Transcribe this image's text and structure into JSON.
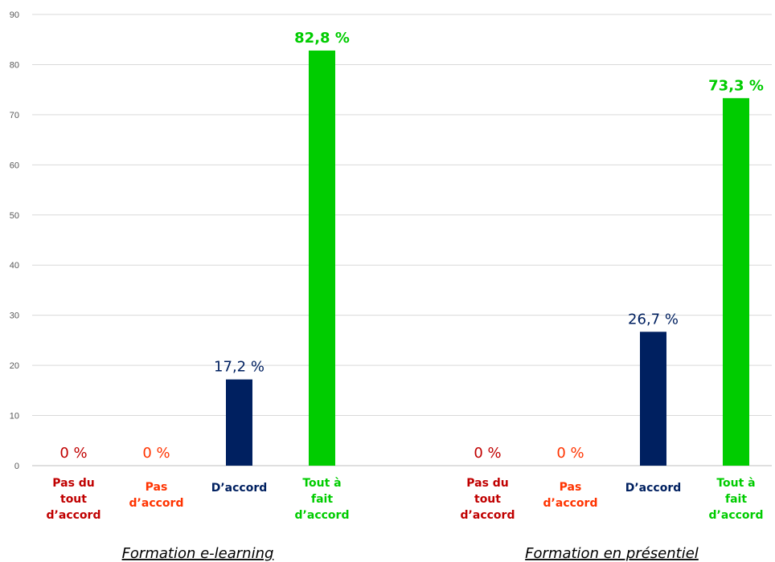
{
  "chart_data": {
    "type": "bar",
    "ylim": [
      0,
      90
    ],
    "yticks": [
      0,
      10,
      20,
      30,
      40,
      50,
      60,
      70,
      80,
      90
    ],
    "grid": true,
    "legend": "none",
    "groups": [
      {
        "label": "Formation e-learning",
        "bars": [
          {
            "category": [
              "Pas du",
              "tout",
              "d’accord"
            ],
            "value": 0,
            "label": "0 %",
            "color": "#C00000",
            "label_color": "#C00000",
            "bold": false
          },
          {
            "category": [
              "Pas",
              "d’accord"
            ],
            "value": 0,
            "label": "0 %",
            "color": "#FF3300",
            "label_color": "#FF3300",
            "bold": false
          },
          {
            "category": [
              "D’accord"
            ],
            "value": 17.2,
            "label": "17,2 %",
            "color": "#002060",
            "label_color": "#002060",
            "bold": false
          },
          {
            "category": [
              "Tout à",
              "fait",
              "d’accord"
            ],
            "value": 82.8,
            "label": "82,8 %",
            "color": "#00CC00",
            "label_color": "#00CC00",
            "bold": true
          }
        ]
      },
      {
        "label": "Formation en présentiel",
        "bars": [
          {
            "category": [
              "Pas du",
              "tout",
              "d’accord"
            ],
            "value": 0,
            "label": "0 %",
            "color": "#C00000",
            "label_color": "#C00000",
            "bold": false
          },
          {
            "category": [
              "Pas",
              "d’accord"
            ],
            "value": 0,
            "label": "0 %",
            "color": "#FF3300",
            "label_color": "#FF3300",
            "bold": false
          },
          {
            "category": [
              "D’accord"
            ],
            "value": 26.7,
            "label": "26,7 %",
            "color": "#002060",
            "label_color": "#002060",
            "bold": false
          },
          {
            "category": [
              "Tout à",
              "fait",
              "d’accord"
            ],
            "value": 73.3,
            "label": "73,3 %",
            "color": "#00CC00",
            "label_color": "#00CC00",
            "bold": true
          }
        ]
      }
    ]
  }
}
